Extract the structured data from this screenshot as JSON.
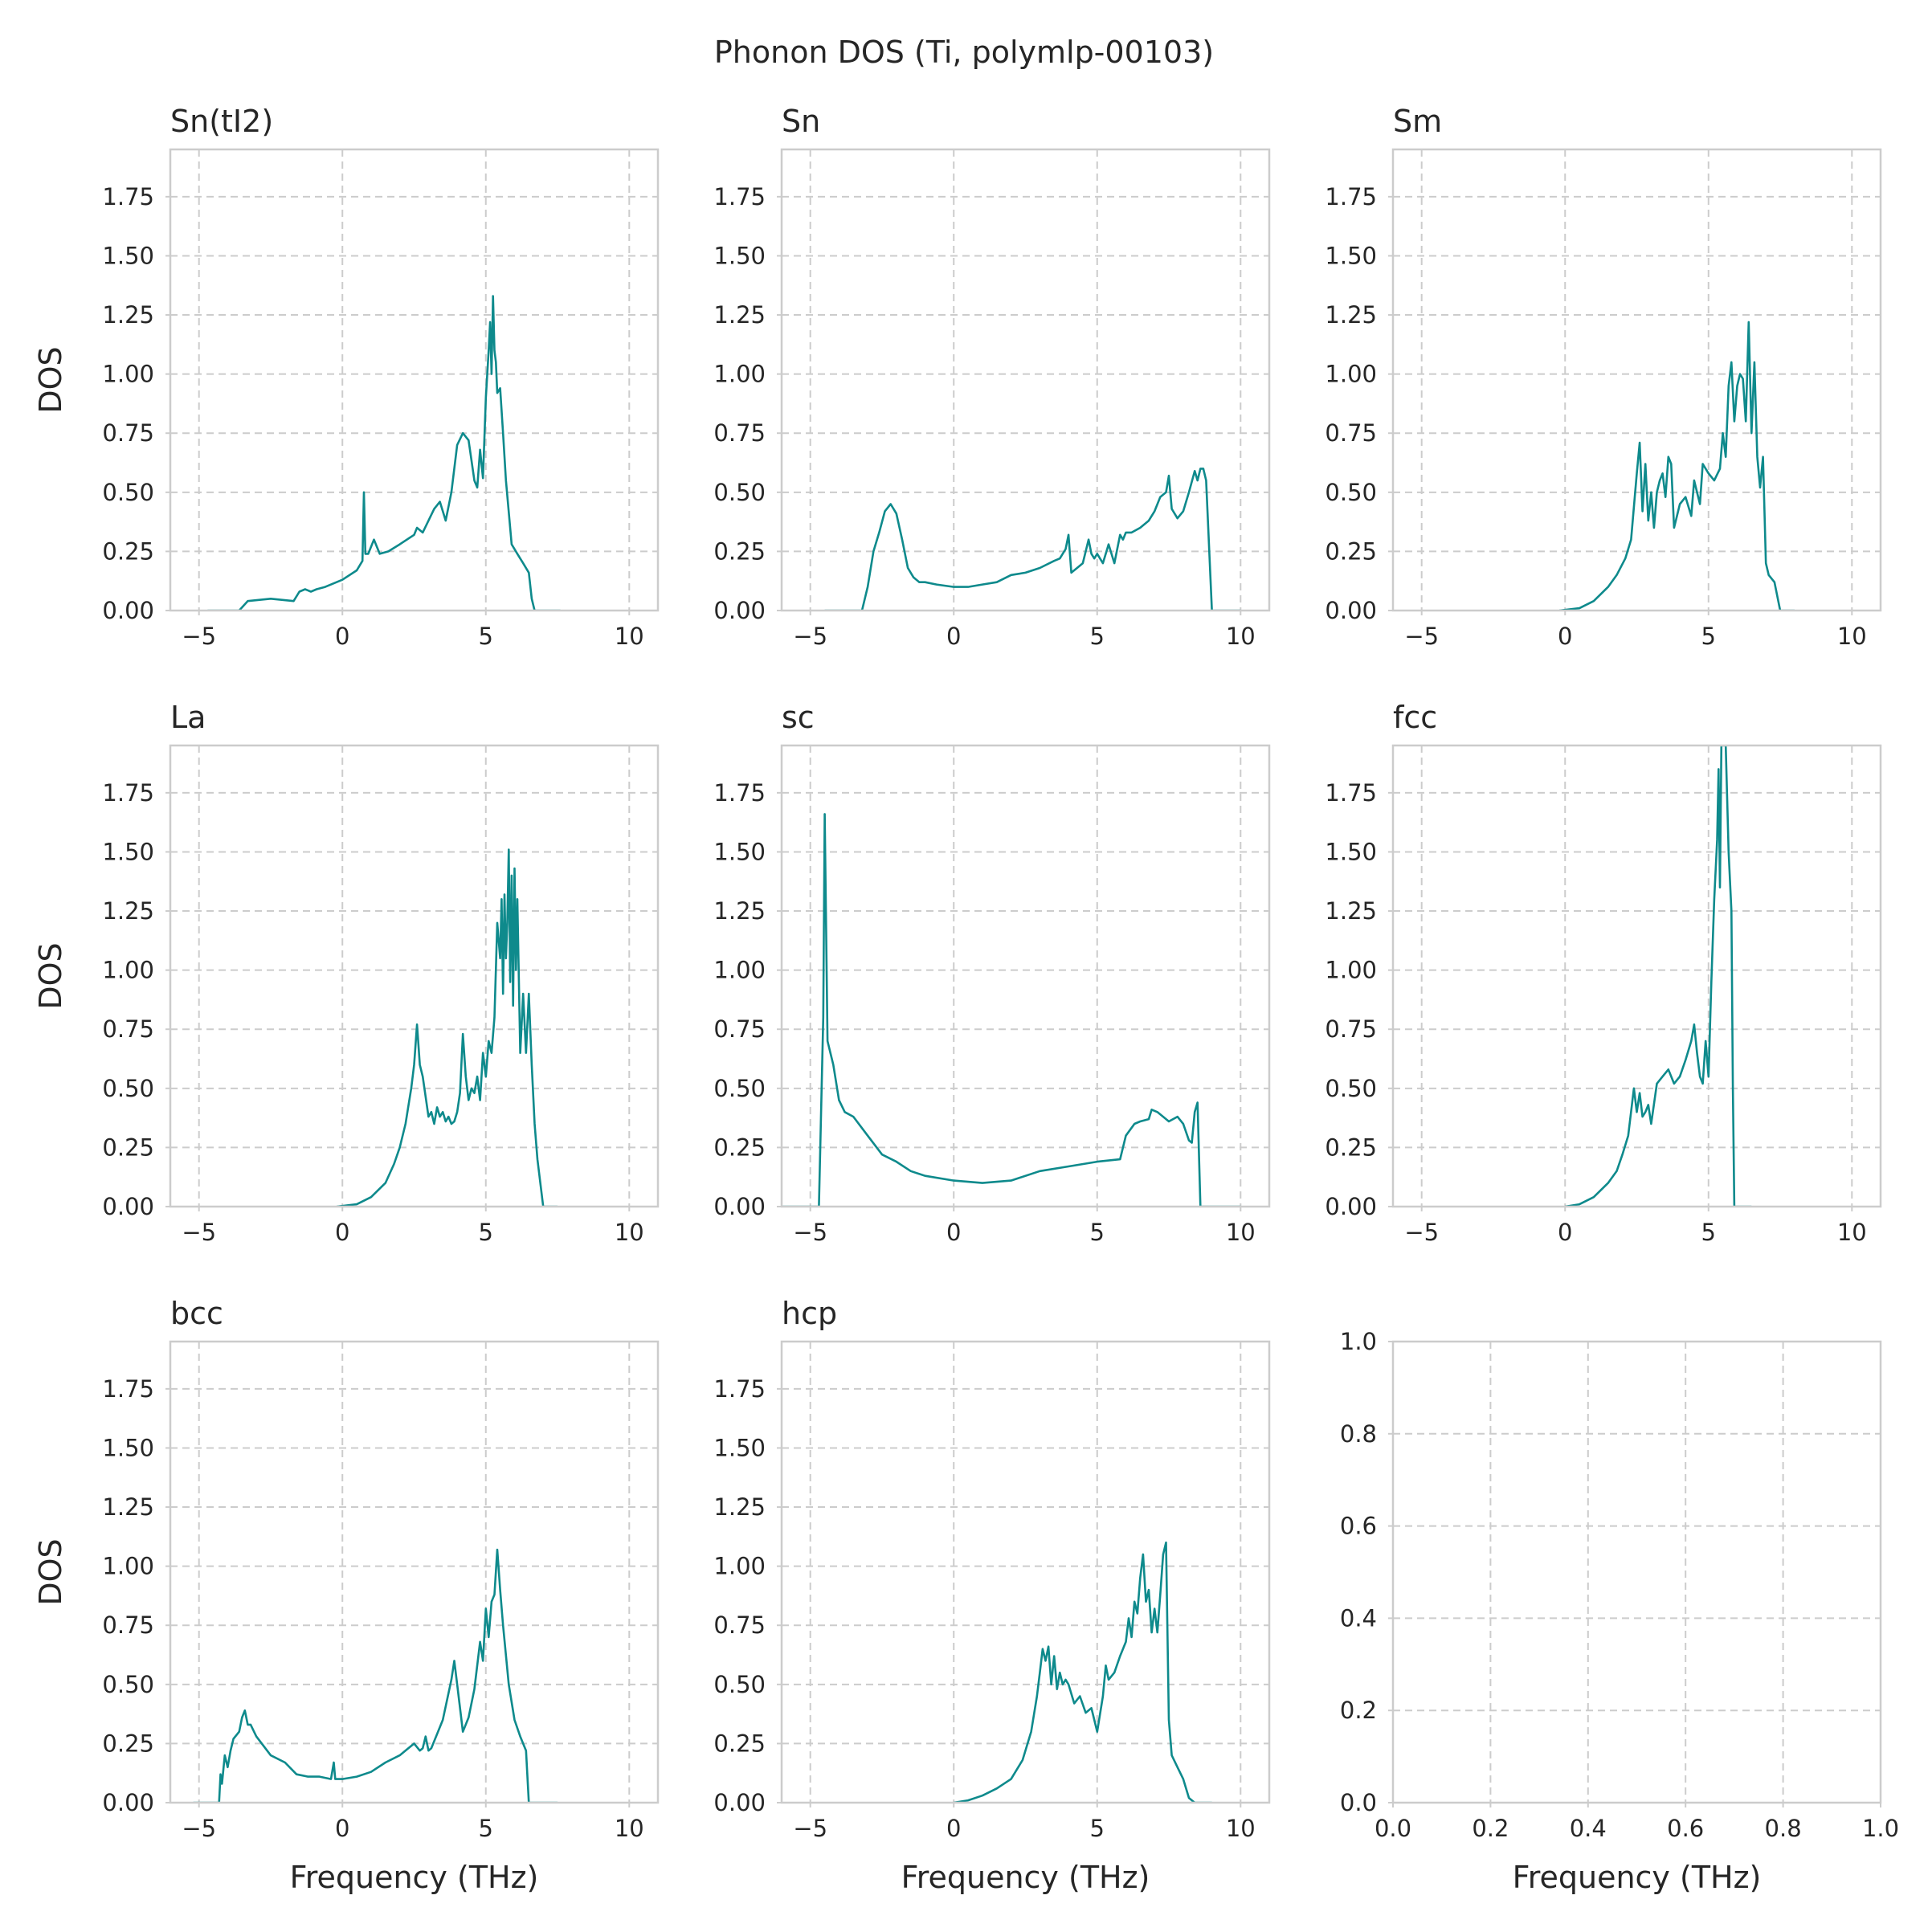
{
  "chart_data": {
    "type": "line",
    "title": "Phonon DOS (Ti, polymlp-00103)",
    "line_color": "#0e8a8c",
    "grid": true,
    "grid_style": "dashed",
    "xlabel": "Frequency (THz)",
    "ylabel": "DOS",
    "panels": [
      {
        "title": "Sn(tI2)",
        "xlim": [
          -6,
          11
        ],
        "ylim": [
          0,
          1.95
        ],
        "xticks": [
          -5,
          0,
          5,
          10
        ],
        "yticks": [
          0,
          0.25,
          0.5,
          0.75,
          1.0,
          1.25,
          1.5,
          1.75
        ],
        "xtick_labels": [
          "−5",
          "0",
          "5",
          "10"
        ],
        "ytick_labels": [
          "0.00",
          "0.25",
          "0.50",
          "0.75",
          "1.00",
          "1.25",
          "1.50",
          "1.75"
        ],
        "ylabel": "DOS",
        "xlabel": "",
        "x": [
          -4.7,
          -3.6,
          -3.3,
          -2.5,
          -1.7,
          -1.5,
          -1.3,
          -1.1,
          -0.9,
          -0.6,
          0,
          0.5,
          0.7,
          0.75,
          0.8,
          0.9,
          1.1,
          1.3,
          1.6,
          2.0,
          2.5,
          2.6,
          2.8,
          3.0,
          3.2,
          3.4,
          3.6,
          3.8,
          4.0,
          4.2,
          4.4,
          4.6,
          4.7,
          4.8,
          4.9,
          5.0,
          5.1,
          5.15,
          5.2,
          5.25,
          5.3,
          5.35,
          5.4,
          5.5,
          5.6,
          5.7,
          5.9,
          6.1,
          6.3,
          6.5,
          6.6,
          6.7,
          7.6
        ],
        "y": [
          0,
          0,
          0.04,
          0.05,
          0.04,
          0.08,
          0.09,
          0.08,
          0.09,
          0.1,
          0.13,
          0.17,
          0.21,
          0.5,
          0.24,
          0.24,
          0.3,
          0.24,
          0.25,
          0.28,
          0.32,
          0.35,
          0.33,
          0.38,
          0.43,
          0.46,
          0.38,
          0.5,
          0.7,
          0.75,
          0.72,
          0.55,
          0.52,
          0.68,
          0.56,
          0.9,
          1.1,
          1.22,
          1.0,
          1.33,
          1.1,
          1.05,
          0.92,
          0.94,
          0.75,
          0.55,
          0.28,
          0.24,
          0.2,
          0.16,
          0.05,
          0,
          0
        ]
      },
      {
        "title": "Sn",
        "xlim": [
          -6,
          11
        ],
        "ylim": [
          0,
          1.95
        ],
        "xticks": [
          -5,
          0,
          5,
          10
        ],
        "yticks": [
          0,
          0.25,
          0.5,
          0.75,
          1.0,
          1.25,
          1.5,
          1.75
        ],
        "xtick_labels": [
          "−5",
          "0",
          "5",
          "10"
        ],
        "ytick_labels": [
          "0.00",
          "0.25",
          "0.50",
          "0.75",
          "1.00",
          "1.25",
          "1.50",
          "1.75"
        ],
        "ylabel": "",
        "xlabel": "",
        "x": [
          -4.5,
          -3.2,
          -3.0,
          -2.8,
          -2.6,
          -2.4,
          -2.2,
          -2.0,
          -1.8,
          -1.6,
          -1.4,
          -1.2,
          -1.0,
          -0.6,
          0,
          0.5,
          1.0,
          1.5,
          2.0,
          2.5,
          3.0,
          3.5,
          3.7,
          3.9,
          4.0,
          4.1,
          4.3,
          4.5,
          4.7,
          4.8,
          4.9,
          5.0,
          5.2,
          5.4,
          5.6,
          5.8,
          5.9,
          6.0,
          6.2,
          6.5,
          6.8,
          7.0,
          7.2,
          7.4,
          7.5,
          7.6,
          7.8,
          8.0,
          8.2,
          8.4,
          8.5,
          8.6,
          8.7,
          8.8,
          9.0,
          10.0
        ],
        "y": [
          0,
          0,
          0.1,
          0.25,
          0.33,
          0.42,
          0.45,
          0.41,
          0.3,
          0.18,
          0.14,
          0.12,
          0.12,
          0.11,
          0.1,
          0.1,
          0.11,
          0.12,
          0.15,
          0.16,
          0.18,
          0.21,
          0.22,
          0.26,
          0.32,
          0.16,
          0.18,
          0.2,
          0.3,
          0.24,
          0.22,
          0.24,
          0.2,
          0.28,
          0.2,
          0.32,
          0.3,
          0.33,
          0.33,
          0.35,
          0.38,
          0.42,
          0.48,
          0.5,
          0.57,
          0.43,
          0.39,
          0.42,
          0.5,
          0.59,
          0.55,
          0.6,
          0.6,
          0.55,
          0,
          0
        ]
      },
      {
        "title": "Sm",
        "xlim": [
          -6,
          11
        ],
        "ylim": [
          0,
          1.95
        ],
        "xticks": [
          -5,
          0,
          5,
          10
        ],
        "yticks": [
          0,
          0.25,
          0.5,
          0.75,
          1.0,
          1.25,
          1.5,
          1.75
        ],
        "xtick_labels": [
          "−5",
          "0",
          "5",
          "10"
        ],
        "ytick_labels": [
          "0.00",
          "0.25",
          "0.50",
          "0.75",
          "1.00",
          "1.25",
          "1.50",
          "1.75"
        ],
        "ylabel": "",
        "xlabel": "",
        "x": [
          -0.2,
          0.5,
          1.0,
          1.5,
          1.8,
          2.1,
          2.3,
          2.5,
          2.6,
          2.7,
          2.8,
          2.9,
          3.0,
          3.1,
          3.2,
          3.3,
          3.4,
          3.5,
          3.6,
          3.7,
          3.8,
          3.9,
          4.0,
          4.2,
          4.4,
          4.5,
          4.6,
          4.7,
          4.8,
          4.9,
          5.0,
          5.2,
          5.4,
          5.5,
          5.6,
          5.7,
          5.8,
          5.9,
          6.0,
          6.1,
          6.2,
          6.3,
          6.4,
          6.5,
          6.6,
          6.7,
          6.8,
          6.9,
          7.0,
          7.1,
          7.3,
          7.5,
          7.6,
          8.0
        ],
        "y": [
          0,
          0.01,
          0.04,
          0.1,
          0.15,
          0.22,
          0.3,
          0.58,
          0.71,
          0.42,
          0.62,
          0.38,
          0.5,
          0.35,
          0.5,
          0.55,
          0.58,
          0.48,
          0.65,
          0.62,
          0.35,
          0.4,
          0.45,
          0.48,
          0.4,
          0.55,
          0.5,
          0.45,
          0.62,
          0.6,
          0.58,
          0.55,
          0.6,
          0.75,
          0.65,
          0.95,
          1.05,
          0.8,
          0.95,
          1.0,
          0.98,
          0.8,
          1.22,
          0.75,
          1.05,
          0.65,
          0.52,
          0.65,
          0.2,
          0.15,
          0.12,
          0,
          0,
          0
        ]
      },
      {
        "title": "La",
        "xlim": [
          -6,
          11
        ],
        "ylim": [
          0,
          1.95
        ],
        "xticks": [
          -5,
          0,
          5,
          10
        ],
        "yticks": [
          0,
          0.25,
          0.5,
          0.75,
          1.0,
          1.25,
          1.5,
          1.75
        ],
        "xtick_labels": [
          "−5",
          "0",
          "5",
          "10"
        ],
        "ytick_labels": [
          "0.00",
          "0.25",
          "0.50",
          "0.75",
          "1.00",
          "1.25",
          "1.50",
          "1.75"
        ],
        "ylabel": "DOS",
        "xlabel": "",
        "x": [
          -0.2,
          0.5,
          1.0,
          1.5,
          1.8,
          2.0,
          2.2,
          2.4,
          2.5,
          2.6,
          2.7,
          2.8,
          3.0,
          3.1,
          3.2,
          3.3,
          3.4,
          3.5,
          3.6,
          3.7,
          3.8,
          3.9,
          4.0,
          4.1,
          4.2,
          4.3,
          4.4,
          4.5,
          4.6,
          4.7,
          4.8,
          4.9,
          5.0,
          5.1,
          5.2,
          5.3,
          5.4,
          5.5,
          5.55,
          5.6,
          5.65,
          5.7,
          5.75,
          5.8,
          5.85,
          5.9,
          5.95,
          6.0,
          6.05,
          6.1,
          6.2,
          6.3,
          6.4,
          6.5,
          6.6,
          6.7,
          6.8,
          7.0,
          7.1,
          7.5
        ],
        "y": [
          0,
          0.01,
          0.04,
          0.1,
          0.18,
          0.25,
          0.35,
          0.5,
          0.6,
          0.77,
          0.6,
          0.55,
          0.38,
          0.4,
          0.35,
          0.42,
          0.38,
          0.4,
          0.36,
          0.38,
          0.35,
          0.36,
          0.4,
          0.48,
          0.73,
          0.55,
          0.45,
          0.5,
          0.48,
          0.55,
          0.45,
          0.65,
          0.55,
          0.7,
          0.65,
          0.8,
          1.2,
          1.05,
          1.3,
          0.9,
          1.32,
          1.05,
          1.2,
          1.51,
          0.95,
          1.4,
          0.85,
          1.43,
          1.0,
          1.3,
          0.65,
          0.9,
          0.65,
          0.9,
          0.6,
          0.35,
          0.2,
          0,
          0,
          0
        ]
      },
      {
        "title": "sc",
        "xlim": [
          -6,
          11
        ],
        "ylim": [
          0,
          1.95
        ],
        "xticks": [
          -5,
          0,
          5,
          10
        ],
        "yticks": [
          0,
          0.25,
          0.5,
          0.75,
          1.0,
          1.25,
          1.5,
          1.75
        ],
        "xtick_labels": [
          "−5",
          "0",
          "5",
          "10"
        ],
        "ytick_labels": [
          "0.00",
          "0.25",
          "0.50",
          "0.75",
          "1.00",
          "1.25",
          "1.50",
          "1.75"
        ],
        "ylabel": "",
        "xlabel": "",
        "x": [
          -6.0,
          -4.7,
          -4.55,
          -4.5,
          -4.4,
          -4.2,
          -4.0,
          -3.8,
          -3.5,
          -3.0,
          -2.5,
          -2.0,
          -1.5,
          -1.0,
          0,
          1.0,
          2.0,
          3.0,
          4.0,
          5.0,
          5.8,
          6.0,
          6.3,
          6.5,
          6.8,
          6.9,
          7.1,
          7.3,
          7.5,
          7.8,
          8.0,
          8.2,
          8.3,
          8.4,
          8.5,
          8.6,
          10.0
        ],
        "y": [
          0,
          0,
          0.8,
          1.66,
          0.7,
          0.6,
          0.45,
          0.4,
          0.38,
          0.3,
          0.22,
          0.19,
          0.15,
          0.13,
          0.11,
          0.1,
          0.11,
          0.15,
          0.17,
          0.19,
          0.2,
          0.3,
          0.35,
          0.36,
          0.37,
          0.41,
          0.4,
          0.38,
          0.36,
          0.38,
          0.35,
          0.28,
          0.27,
          0.4,
          0.44,
          0,
          0
        ]
      },
      {
        "title": "fcc",
        "xlim": [
          -6,
          11
        ],
        "ylim": [
          0,
          1.95
        ],
        "xticks": [
          -5,
          0,
          5,
          10
        ],
        "yticks": [
          0,
          0.25,
          0.5,
          0.75,
          1.0,
          1.25,
          1.5,
          1.75
        ],
        "xtick_labels": [
          "−5",
          "0",
          "5",
          "10"
        ],
        "ytick_labels": [
          "0.00",
          "0.25",
          "0.50",
          "0.75",
          "1.00",
          "1.25",
          "1.50",
          "1.75"
        ],
        "ylabel": "",
        "xlabel": "",
        "x": [
          0.0,
          0.5,
          1.0,
          1.5,
          1.8,
          2.0,
          2.2,
          2.4,
          2.5,
          2.6,
          2.7,
          2.8,
          2.9,
          3.0,
          3.2,
          3.4,
          3.6,
          3.8,
          4.0,
          4.2,
          4.4,
          4.5,
          4.6,
          4.7,
          4.8,
          4.9,
          5.0,
          5.1,
          5.2,
          5.3,
          5.35,
          5.4,
          5.45,
          5.5,
          5.55,
          5.6,
          5.7,
          5.8,
          5.85,
          5.9,
          6.5
        ],
        "y": [
          0,
          0.01,
          0.04,
          0.1,
          0.15,
          0.22,
          0.3,
          0.5,
          0.4,
          0.48,
          0.38,
          0.4,
          0.43,
          0.35,
          0.52,
          0.55,
          0.58,
          0.52,
          0.55,
          0.62,
          0.7,
          0.77,
          0.65,
          0.55,
          0.52,
          0.7,
          0.55,
          0.95,
          1.3,
          1.55,
          1.85,
          1.35,
          1.95,
          1.95,
          1.95,
          1.95,
          1.5,
          1.25,
          0.5,
          0,
          0
        ]
      },
      {
        "title": "bcc",
        "xlim": [
          -6,
          11
        ],
        "ylim": [
          0,
          1.95
        ],
        "xticks": [
          -5,
          0,
          5,
          10
        ],
        "yticks": [
          0,
          0.25,
          0.5,
          0.75,
          1.0,
          1.25,
          1.5,
          1.75
        ],
        "xtick_labels": [
          "−5",
          "0",
          "5",
          "10"
        ],
        "ytick_labels": [
          "0.00",
          "0.25",
          "0.50",
          "0.75",
          "1.00",
          "1.25",
          "1.50",
          "1.75"
        ],
        "ylabel": "DOS",
        "xlabel": "Frequency (THz)",
        "x": [
          -5.2,
          -4.3,
          -4.25,
          -4.2,
          -4.1,
          -4.0,
          -3.9,
          -3.8,
          -3.6,
          -3.5,
          -3.4,
          -3.3,
          -3.2,
          -3.0,
          -2.5,
          -2.0,
          -1.6,
          -1.2,
          -0.8,
          -0.4,
          -0.3,
          -0.25,
          -0.2,
          0,
          0.5,
          1.0,
          1.5,
          2.0,
          2.5,
          2.7,
          2.8,
          2.9,
          3.0,
          3.1,
          3.5,
          3.8,
          3.9,
          4.0,
          4.2,
          4.4,
          4.6,
          4.8,
          4.9,
          5.0,
          5.1,
          5.2,
          5.3,
          5.4,
          5.5,
          5.6,
          5.8,
          6.0,
          6.2,
          6.4,
          6.5,
          7.5
        ],
        "y": [
          0,
          0,
          0.12,
          0.08,
          0.2,
          0.15,
          0.22,
          0.27,
          0.3,
          0.36,
          0.39,
          0.33,
          0.33,
          0.28,
          0.2,
          0.17,
          0.12,
          0.11,
          0.11,
          0.1,
          0.17,
          0.1,
          0.1,
          0.1,
          0.11,
          0.13,
          0.17,
          0.2,
          0.25,
          0.22,
          0.23,
          0.28,
          0.22,
          0.23,
          0.35,
          0.52,
          0.6,
          0.5,
          0.3,
          0.36,
          0.48,
          0.68,
          0.6,
          0.82,
          0.7,
          0.85,
          0.88,
          1.07,
          0.9,
          0.75,
          0.5,
          0.35,
          0.28,
          0.22,
          0,
          0
        ]
      },
      {
        "title": "hcp",
        "xlim": [
          -6,
          11
        ],
        "ylim": [
          0,
          1.95
        ],
        "xticks": [
          -5,
          0,
          5,
          10
        ],
        "yticks": [
          0,
          0.25,
          0.5,
          0.75,
          1.0,
          1.25,
          1.5,
          1.75
        ],
        "xtick_labels": [
          "−5",
          "0",
          "5",
          "10"
        ],
        "ytick_labels": [
          "0.00",
          "0.25",
          "0.50",
          "0.75",
          "1.00",
          "1.25",
          "1.50",
          "1.75"
        ],
        "ylabel": "",
        "xlabel": "Frequency (THz)",
        "x": [
          0.0,
          0.5,
          1.0,
          1.5,
          2.0,
          2.4,
          2.7,
          2.9,
          3.0,
          3.1,
          3.2,
          3.3,
          3.4,
          3.5,
          3.6,
          3.7,
          3.8,
          3.9,
          4.0,
          4.2,
          4.4,
          4.6,
          4.8,
          5.0,
          5.2,
          5.3,
          5.4,
          5.6,
          5.8,
          6.0,
          6.1,
          6.2,
          6.3,
          6.4,
          6.5,
          6.6,
          6.7,
          6.8,
          6.9,
          7.0,
          7.1,
          7.2,
          7.3,
          7.4,
          7.5,
          7.6,
          7.8,
          8.0,
          8.2,
          8.4,
          9.0
        ],
        "y": [
          0,
          0.01,
          0.03,
          0.06,
          0.1,
          0.18,
          0.3,
          0.45,
          0.55,
          0.65,
          0.6,
          0.66,
          0.5,
          0.62,
          0.48,
          0.55,
          0.5,
          0.52,
          0.5,
          0.42,
          0.45,
          0.38,
          0.4,
          0.3,
          0.45,
          0.58,
          0.52,
          0.55,
          0.62,
          0.68,
          0.78,
          0.7,
          0.85,
          0.8,
          0.95,
          1.05,
          0.85,
          0.9,
          0.72,
          0.82,
          0.72,
          0.88,
          1.05,
          1.1,
          0.35,
          0.2,
          0.15,
          0.1,
          0.02,
          0,
          0
        ]
      },
      {
        "title": "",
        "empty": true,
        "xlim": [
          0,
          1
        ],
        "ylim": [
          0,
          1
        ],
        "xticks": [
          0,
          0.2,
          0.4,
          0.6,
          0.8,
          1.0
        ],
        "yticks": [
          0,
          0.2,
          0.4,
          0.6,
          0.8,
          1.0
        ],
        "xtick_labels": [
          "0.0",
          "0.2",
          "0.4",
          "0.6",
          "0.8",
          "1.0"
        ],
        "ytick_labels": [
          "0.0",
          "0.2",
          "0.4",
          "0.6",
          "0.8",
          "1.0"
        ],
        "ylabel": "",
        "xlabel": "Frequency (THz)",
        "x": [],
        "y": []
      }
    ]
  }
}
